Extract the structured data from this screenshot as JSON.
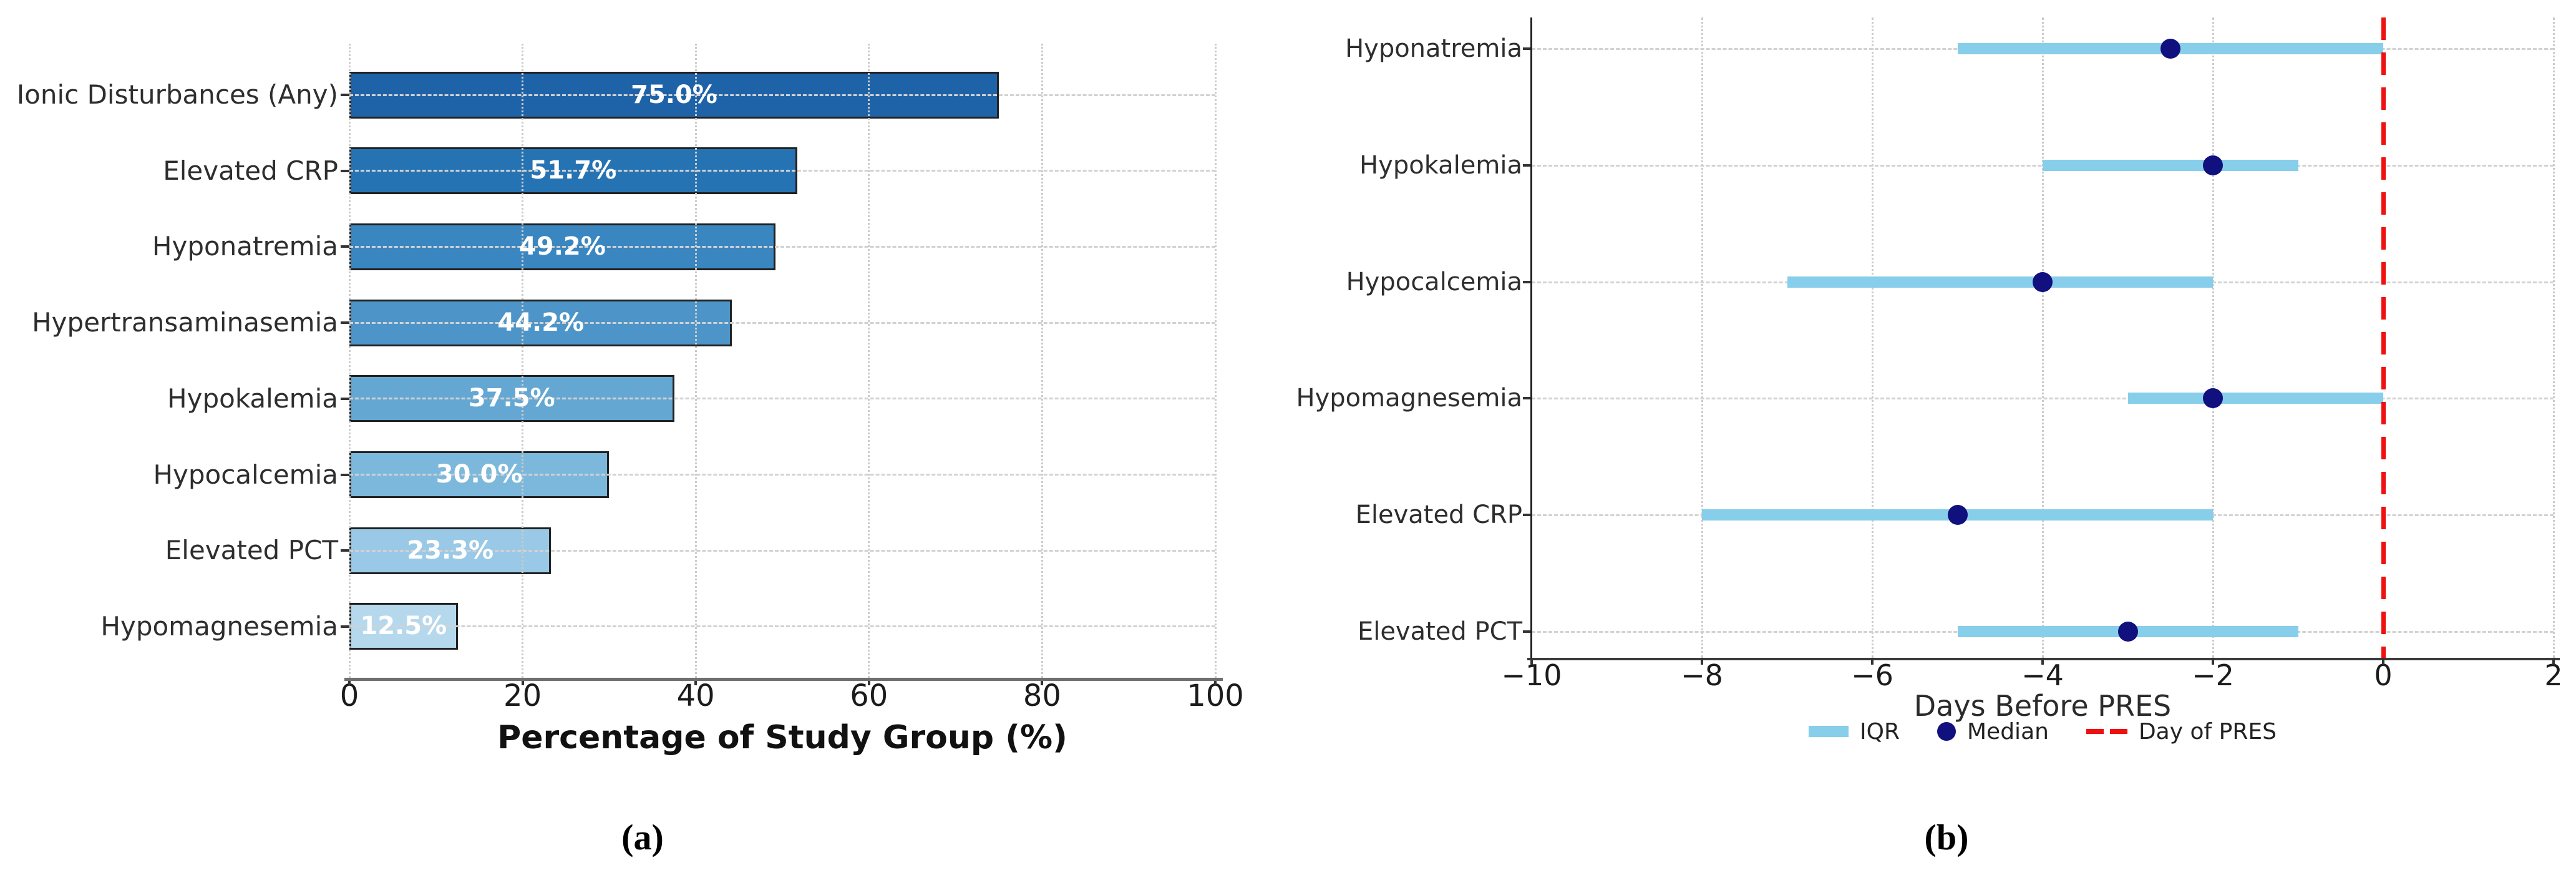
{
  "figure": {
    "caption_a": "(a)",
    "caption_b": "(b)",
    "background": "#ffffff"
  },
  "chart_data": [
    {
      "type": "bar",
      "orientation": "horizontal",
      "title": "",
      "xlabel": "Percentage of Study Group (%)",
      "ylabel": "",
      "xlim": [
        0,
        100
      ],
      "xticks": [
        0,
        20,
        40,
        60,
        80,
        100
      ],
      "xtick_labels": [
        "0",
        "20",
        "40",
        "60",
        "80",
        "100"
      ],
      "grid": true,
      "categories": [
        "Ionic Disturbances (Any)",
        "Elevated CRP",
        "Hyponatremia",
        "Hypertransaminasemia",
        "Hypokalemia",
        "Hypocalcemia",
        "Elevated PCT",
        "Hypomagnesemia"
      ],
      "values": [
        75.0,
        51.7,
        49.2,
        44.2,
        37.5,
        30.0,
        23.3,
        12.5
      ],
      "bar_labels": [
        "75.0%",
        "51.7%",
        "49.2%",
        "44.2%",
        "37.5%",
        "30.0%",
        "23.3%",
        "12.5%"
      ],
      "bar_colors": [
        "#1e63a8",
        "#2673b4",
        "#3a86c0",
        "#4d95c9",
        "#64a7d3",
        "#7cb8dc",
        "#99c9e6",
        "#b6d8ec"
      ],
      "bar_edge_color": "#212121",
      "value_label_color": "#ffffff"
    },
    {
      "type": "scatter",
      "subtype": "range-dot",
      "title": "",
      "xlabel": "Days Before PRES",
      "ylabel": "",
      "xlim": [
        -10,
        2
      ],
      "xticks": [
        -10,
        -8,
        -6,
        -4,
        -2,
        0,
        2
      ],
      "xtick_labels": [
        "−10",
        "−8",
        "−6",
        "−4",
        "−2",
        "0",
        "2"
      ],
      "gridline_xticks": [
        -8,
        -6,
        -4,
        -2,
        2
      ],
      "grid": true,
      "legend_position": "bottom",
      "categories": [
        "Hyponatremia",
        "Hypokalemia",
        "Hypocalcemia",
        "Hypomagnesemia",
        "Elevated CRP",
        "Elevated PCT"
      ],
      "series": [
        {
          "name": "IQR",
          "type": "range",
          "color": "#87ceeb",
          "ranges": [
            [
              -5,
              0
            ],
            [
              -4,
              -1
            ],
            [
              -7,
              -2
            ],
            [
              -3,
              0
            ],
            [
              -8,
              -2
            ],
            [
              -5,
              -1
            ]
          ]
        },
        {
          "name": "Median",
          "type": "dot",
          "color": "#10107e",
          "values": [
            -2.5,
            -2,
            -4,
            -2,
            -5,
            -3
          ]
        }
      ],
      "reference_line": {
        "x": 0,
        "label": "Day of PRES",
        "color": "#ef1010",
        "style": "dashed"
      },
      "legend": [
        {
          "label": "IQR",
          "swatch": "bar",
          "color": "#87ceeb"
        },
        {
          "label": "Median",
          "swatch": "dot",
          "color": "#10107e"
        },
        {
          "label": "Day of PRES",
          "swatch": "dash",
          "color": "#ef1010"
        }
      ]
    }
  ]
}
